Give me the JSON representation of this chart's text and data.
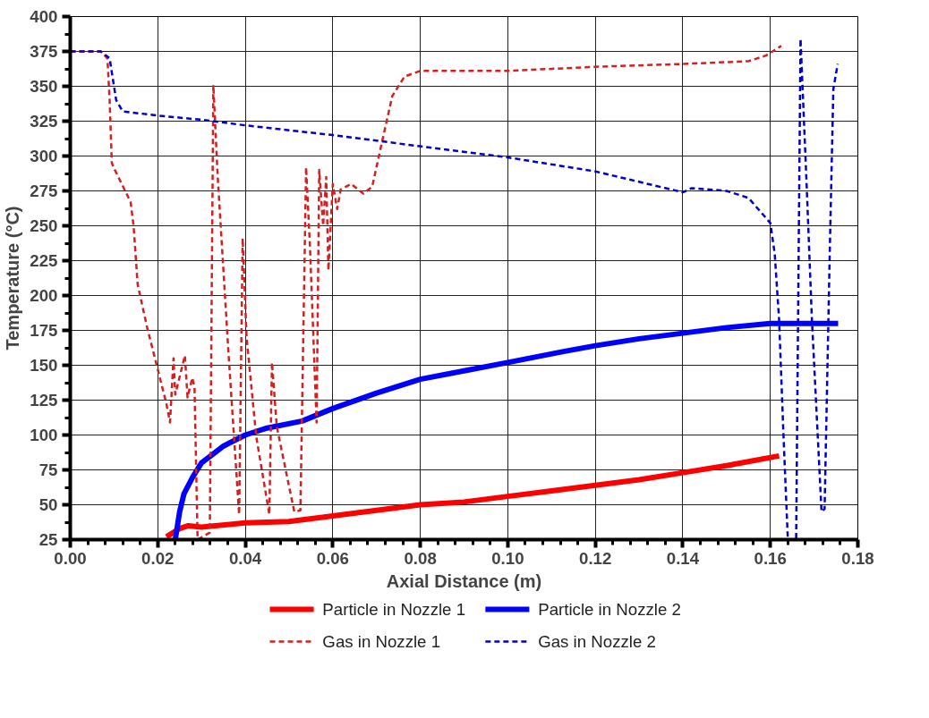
{
  "chart_data": {
    "type": "line",
    "xlabel": "Axial Distance (m)",
    "ylabel": "Temperature (°C)",
    "xlim": [
      0,
      0.18
    ],
    "ylim": [
      25,
      400
    ],
    "xticks": [
      {
        "value": 0,
        "label": "0.00"
      },
      {
        "value": 0.02,
        "label": "0.02"
      },
      {
        "value": 0.04,
        "label": "0.04"
      },
      {
        "value": 0.06,
        "label": "0.06"
      },
      {
        "value": 0.08,
        "label": "0.08"
      },
      {
        "value": 0.1,
        "label": "0.10"
      },
      {
        "value": 0.12,
        "label": "0.12"
      },
      {
        "value": 0.14,
        "label": "0.14"
      },
      {
        "value": 0.16,
        "label": "0.16"
      },
      {
        "value": 0.18,
        "label": "0.18"
      }
    ],
    "yticks": [
      25,
      50,
      75,
      100,
      125,
      150,
      175,
      200,
      225,
      250,
      275,
      300,
      325,
      350,
      375,
      400
    ],
    "grid": true,
    "legend": "bottom",
    "series": [
      {
        "name": "Particle in Nozzle 1",
        "color": "#ff0000",
        "line_style": "solid",
        "x": [
          0.022,
          0.025,
          0.027,
          0.03,
          0.04,
          0.05,
          0.06,
          0.07,
          0.08,
          0.09,
          0.1,
          0.11,
          0.12,
          0.13,
          0.14,
          0.15,
          0.162
        ],
        "values": [
          27,
          33,
          35,
          34,
          37,
          38,
          42,
          46,
          50,
          52,
          56,
          60,
          64,
          68,
          73,
          78,
          85
        ]
      },
      {
        "name": "Particle in Nozzle 2",
        "color": "#0000ff",
        "line_style": "solid",
        "x": [
          0.024,
          0.025,
          0.026,
          0.028,
          0.03,
          0.035,
          0.04,
          0.045,
          0.053,
          0.06,
          0.07,
          0.08,
          0.09,
          0.1,
          0.113,
          0.12,
          0.13,
          0.14,
          0.15,
          0.16,
          0.1755
        ],
        "values": [
          25,
          45,
          58,
          70,
          80,
          92,
          100,
          105,
          110,
          119,
          130,
          140,
          146,
          152,
          160,
          164,
          169,
          173,
          177,
          180,
          180
        ]
      },
      {
        "name": "Gas in Nozzle 1",
        "color": "#d42020",
        "line_style": "dashed",
        "x": [
          0,
          0.007,
          0.0085,
          0.009,
          0.0095,
          0.0102,
          0.0138,
          0.0145,
          0.0154,
          0.0175,
          0.02,
          0.022,
          0.0228,
          0.0236,
          0.024,
          0.0262,
          0.0268,
          0.0279,
          0.0284,
          0.0291,
          0.0319,
          0.0327,
          0.0337,
          0.0362,
          0.0386,
          0.0394,
          0.0403,
          0.0425,
          0.0455,
          0.0461,
          0.0472,
          0.0512,
          0.0526,
          0.0539,
          0.0548,
          0.0563,
          0.0569,
          0.0578,
          0.0585,
          0.059,
          0.06,
          0.061,
          0.0618,
          0.0642,
          0.067,
          0.069,
          0.0716,
          0.0736,
          0.0764,
          0.08,
          0.1,
          0.12,
          0.14,
          0.155,
          0.159,
          0.161,
          0.1625
        ],
        "values": [
          375,
          375,
          370,
          340,
          295,
          290,
          267,
          249,
          208,
          178,
          147,
          122,
          109,
          155,
          129,
          157,
          127,
          141,
          134,
          25,
          30,
          351,
          285,
          157,
          43,
          241,
          170,
          99,
          43,
          152,
          106,
          45,
          46,
          292,
          234,
          109,
          290,
          250,
          285,
          218,
          280,
          262,
          276,
          280,
          273,
          278,
          315,
          343,
          357,
          361,
          361,
          364,
          366,
          368,
          372,
          376,
          379
        ]
      },
      {
        "name": "Gas in Nozzle 2",
        "color": "#0000cc",
        "line_style": "dashed",
        "x": [
          0,
          0.007,
          0.009,
          0.0105,
          0.012,
          0.02,
          0.03,
          0.04,
          0.06,
          0.08,
          0.1,
          0.12,
          0.14,
          0.142,
          0.15,
          0.155,
          0.16,
          0.161,
          0.162,
          0.163,
          0.164,
          0.1659,
          0.1669,
          0.1683,
          0.1695,
          0.1717,
          0.1724,
          0.1736,
          0.1744,
          0.1754
        ],
        "values": [
          375,
          375,
          370,
          340,
          332,
          329,
          326,
          322,
          315,
          307,
          299,
          289,
          274,
          277,
          275,
          270,
          252,
          230,
          183,
          100,
          25,
          25,
          384,
          279,
          183,
          45,
          47,
          234,
          348,
          366
        ]
      }
    ]
  }
}
